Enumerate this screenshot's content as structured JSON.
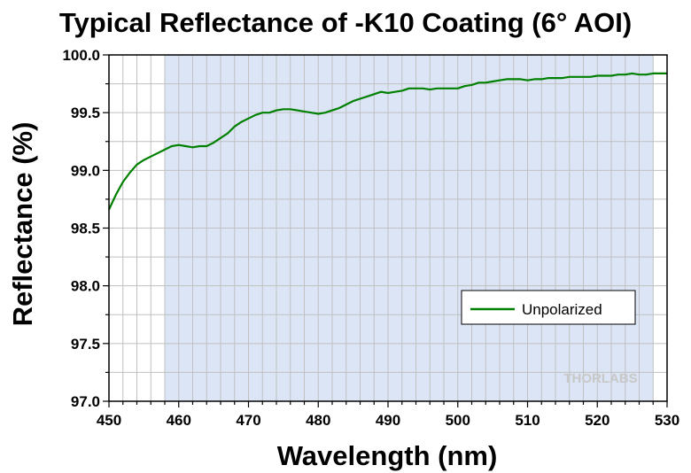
{
  "chart_data": {
    "type": "line",
    "title": "Typical Reflectance of -K10 Coating (6° AOI)",
    "xlabel": "Wavelength (nm)",
    "ylabel": "Reflectance (%)",
    "xlim": [
      450,
      530
    ],
    "ylim": [
      97.0,
      100.0
    ],
    "x_ticks": [
      "450",
      "460",
      "470",
      "480",
      "490",
      "500",
      "510",
      "520",
      "530"
    ],
    "y_ticks": [
      "97.0",
      "97.5",
      "98.0",
      "98.5",
      "99.0",
      "99.5",
      "100.0"
    ],
    "grid": true,
    "legend_position": "center-right",
    "shaded_band": {
      "x_start": 458,
      "x_end": 528,
      "color": "#dbe5f5"
    },
    "series": [
      {
        "name": "Unpolarized",
        "color": "#008000",
        "x": [
          450,
          451,
          452,
          453,
          454,
          455,
          456,
          457,
          458,
          459,
          460,
          461,
          462,
          463,
          464,
          465,
          466,
          467,
          468,
          469,
          470,
          471,
          472,
          473,
          474,
          475,
          476,
          477,
          478,
          479,
          480,
          481,
          482,
          483,
          484,
          485,
          486,
          487,
          488,
          489,
          490,
          491,
          492,
          493,
          494,
          495,
          496,
          497,
          498,
          499,
          500,
          501,
          502,
          503,
          504,
          505,
          506,
          507,
          508,
          509,
          510,
          511,
          512,
          513,
          514,
          515,
          516,
          517,
          518,
          519,
          520,
          521,
          522,
          523,
          524,
          525,
          526,
          527,
          528,
          529,
          530
        ],
        "y": [
          98.66,
          98.79,
          98.9,
          98.98,
          99.05,
          99.09,
          99.12,
          99.15,
          99.18,
          99.21,
          99.22,
          99.21,
          99.2,
          99.21,
          99.21,
          99.24,
          99.28,
          99.32,
          99.38,
          99.42,
          99.45,
          99.48,
          99.5,
          99.5,
          99.52,
          99.53,
          99.53,
          99.52,
          99.51,
          99.5,
          99.49,
          99.5,
          99.52,
          99.54,
          99.57,
          99.6,
          99.62,
          99.64,
          99.66,
          99.68,
          99.67,
          99.68,
          99.69,
          99.71,
          99.71,
          99.71,
          99.7,
          99.71,
          99.71,
          99.71,
          99.71,
          99.73,
          99.74,
          99.76,
          99.76,
          99.77,
          99.78,
          99.79,
          99.79,
          99.79,
          99.78,
          99.79,
          99.79,
          99.8,
          99.8,
          99.8,
          99.81,
          99.81,
          99.81,
          99.81,
          99.82,
          99.82,
          99.82,
          99.83,
          99.83,
          99.84,
          99.83,
          99.83,
          99.84,
          99.84,
          99.84
        ]
      }
    ]
  },
  "watermark": "THORLABS"
}
